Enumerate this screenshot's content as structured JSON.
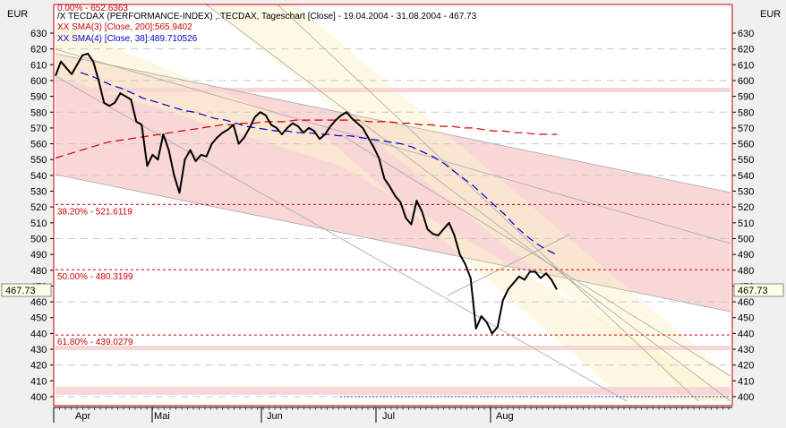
{
  "header": {
    "currency_left": "EUR",
    "currency_right": "EUR",
    "title": "/X TECDAX (PERFORMANCE-INDEX) ,.TECDAX, Tageschart [Close] - 19.04.2004 - 31.08.2004 - 467.73",
    "sma200_label": "XX SMA(3) [Close, 200]:565.9402",
    "sma38_label": "XX SMA(4) [Close, 38]:489.710526",
    "fib0_label": "0.00% - 652.6363"
  },
  "colors": {
    "price": "#000000",
    "sma200": "#cc0000",
    "sma38": "#0000cc",
    "fib_line": "#cc0000",
    "channel_red": "#f7c9c9",
    "channel_yellow": "#fbf3cc",
    "frame": "#cc0000"
  },
  "chart_data": {
    "type": "line",
    "title": "/X TECDAX (PERFORMANCE-INDEX) ,.TECDAX, Tageschart [Close] - 19.04.2004 - 31.08.2004 - 467.73",
    "ylabel": "EUR",
    "ylim": [
      395,
      640
    ],
    "yticks": [
      400,
      410,
      420,
      430,
      440,
      450,
      460,
      470,
      480,
      490,
      500,
      510,
      520,
      530,
      540,
      550,
      560,
      570,
      580,
      590,
      600,
      610,
      620,
      630
    ],
    "month_labels": [
      "Apr",
      "Mai",
      "Jun",
      "Jul",
      "Aug"
    ],
    "current_value_label": "467.73",
    "fib_levels": [
      {
        "pct": "0.00%",
        "value": 652.6363,
        "label": "0.00% - 652.6363"
      },
      {
        "pct": "38.20%",
        "value": 521.6119,
        "label": "38.20% - 521.6119"
      },
      {
        "pct": "50.00%",
        "value": 480.3199,
        "label": "50.00% - 480.3199"
      },
      {
        "pct": "61.80%",
        "value": 439.0279,
        "label": "61.80% - 439.0279"
      }
    ],
    "series": [
      {
        "name": "TECDAX Close",
        "values": [
          603,
          612,
          608,
          604,
          610,
          616,
          617,
          612,
          600,
          586,
          584,
          586,
          592,
          590,
          588,
          574,
          572,
          546,
          553,
          550,
          566,
          556,
          540,
          529,
          550,
          556,
          549,
          553,
          552,
          560,
          564,
          567,
          569,
          572,
          560,
          564,
          570,
          577,
          580,
          578,
          572,
          570,
          566,
          570,
          573,
          571,
          567,
          570,
          568,
          563,
          566,
          571,
          575,
          578,
          580,
          576,
          573,
          570,
          564,
          558,
          551,
          538,
          533,
          527,
          523,
          513,
          509,
          524,
          517,
          506,
          503,
          502,
          506,
          510,
          502,
          490,
          484,
          475,
          443,
          451,
          447,
          440,
          444,
          461,
          468,
          472,
          476,
          474,
          479,
          479,
          475,
          478,
          474,
          467.73
        ]
      },
      {
        "name": "XX SMA(3) [Close, 200]",
        "values": [
          551,
          553,
          555,
          557,
          559,
          561,
          562,
          563,
          564,
          565,
          566,
          567,
          568,
          569,
          570,
          571,
          572,
          572,
          573,
          573,
          574,
          574,
          574,
          575,
          575,
          575,
          575,
          575,
          575,
          575,
          574,
          574,
          574,
          573,
          573,
          572,
          572,
          571,
          571,
          570,
          570,
          569,
          568,
          568,
          567,
          567,
          566,
          566,
          565.9402
        ]
      },
      {
        "name": "XX SMA(4) [Close, 38]",
        "values": [
          605,
          603,
          600,
          597,
          595,
          592,
          589,
          587,
          585,
          583,
          581,
          580,
          578,
          576,
          575,
          573,
          571,
          570,
          569,
          568,
          568,
          567,
          567,
          566,
          566,
          565,
          565,
          564,
          563,
          562,
          561,
          560,
          558,
          555,
          552,
          548,
          543,
          538,
          533,
          527,
          521,
          515,
          508,
          502,
          497,
          493,
          489.710526
        ]
      }
    ]
  }
}
